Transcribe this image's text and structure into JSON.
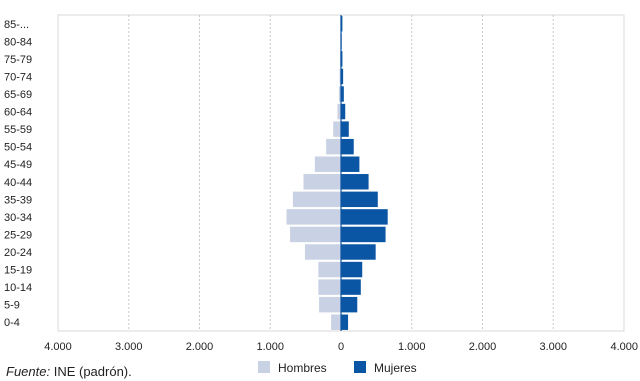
{
  "chart_data": {
    "type": "bar",
    "orientation": "horizontal",
    "categories": [
      "85-...",
      "80-84",
      "75-79",
      "70-74",
      "65-69",
      "60-64",
      "55-59",
      "50-54",
      "45-49",
      "40-44",
      "35-39",
      "30-34",
      "25-29",
      "20-24",
      "15-19",
      "10-14",
      "5-9",
      "0-4"
    ],
    "series": [
      {
        "name": "Hombres",
        "color": "#c9d1e4",
        "side": "left",
        "values": [
          10,
          10,
          15,
          20,
          30,
          50,
          110,
          210,
          370,
          530,
          680,
          770,
          720,
          510,
          320,
          320,
          310,
          140
        ]
      },
      {
        "name": "Mujeres",
        "color": "#0b56a4",
        "side": "right",
        "values": [
          20,
          10,
          20,
          30,
          40,
          60,
          110,
          180,
          260,
          390,
          520,
          660,
          630,
          490,
          300,
          280,
          230,
          100
        ]
      }
    ],
    "x_ticks": [
      "4.000",
      "3.000",
      "2.000",
      "1.000",
      "0",
      "1.000",
      "2.000",
      "3.000",
      "4.000"
    ],
    "xlim": [
      -4000,
      4000
    ],
    "grid": "vertical dashed",
    "legend_position": "bottom"
  },
  "source": {
    "label": "Fuente:",
    "text": " INE (padrón)."
  }
}
